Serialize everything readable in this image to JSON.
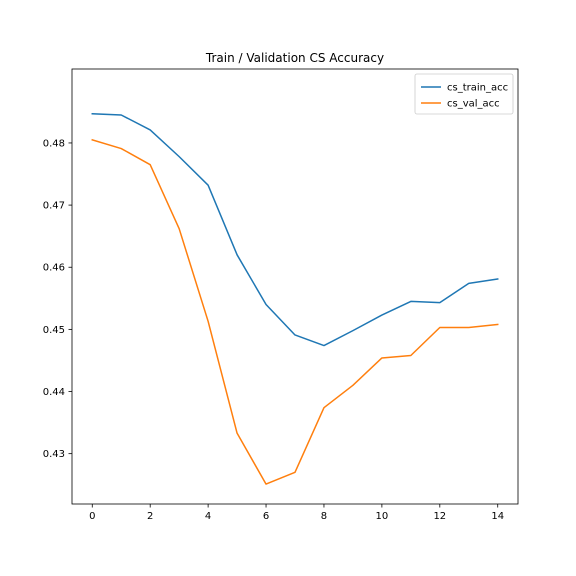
{
  "chart_data": {
    "type": "line",
    "title": "Train / Validation CS Accuracy",
    "xlabel": "",
    "ylabel": "",
    "xlim": [
      -0.7,
      14.7
    ],
    "ylim": [
      0.4219,
      0.4919
    ],
    "x_ticks": [
      0,
      2,
      4,
      6,
      8,
      10,
      12,
      14
    ],
    "y_ticks": [
      0.43,
      0.44,
      0.45,
      0.46,
      0.47,
      0.48
    ],
    "x_tick_labels": [
      "0",
      "2",
      "4",
      "6",
      "8",
      "10",
      "12",
      "14"
    ],
    "y_tick_labels": [
      "0.43",
      "0.44",
      "0.45",
      "0.46",
      "0.47",
      "0.48"
    ],
    "grid": false,
    "legend_position": "top-right",
    "x": [
      0,
      1,
      2,
      3,
      4,
      5,
      6,
      7,
      8,
      9,
      10,
      11,
      12,
      13,
      14
    ],
    "series": [
      {
        "name": "cs_train_acc",
        "color": "#1f77b4",
        "values": [
          0.4847,
          0.4845,
          0.4821,
          0.4778,
          0.4732,
          0.462,
          0.454,
          0.4491,
          0.4474,
          0.4498,
          0.4523,
          0.4545,
          0.4543,
          0.4574,
          0.4581
        ]
      },
      {
        "name": "cs_val_acc",
        "color": "#ff7f0e",
        "values": [
          0.4805,
          0.4791,
          0.4765,
          0.4662,
          0.4513,
          0.4333,
          0.4251,
          0.427,
          0.4374,
          0.441,
          0.4454,
          0.4458,
          0.4503,
          0.4503,
          0.4508
        ]
      }
    ]
  }
}
